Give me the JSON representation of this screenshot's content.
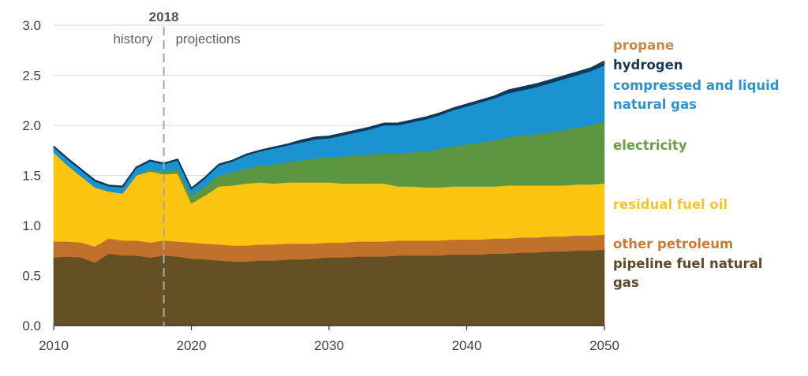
{
  "chart_data": {
    "type": "area",
    "stacked": true,
    "title": "",
    "xlabel": "",
    "ylabel": "",
    "xlim": [
      2010,
      2050
    ],
    "ylim": [
      0,
      3.0
    ],
    "x_ticks": [
      "2010",
      "2020",
      "2030",
      "2040",
      "2050"
    ],
    "y_ticks": [
      "0.0",
      "0.5",
      "1.0",
      "1.5",
      "2.0",
      "2.5",
      "3.0"
    ],
    "grid": "horizontal",
    "legend_placement": "right",
    "annotations": {
      "divider_year": 2018,
      "divider_label": "2018",
      "left_label": "history",
      "right_label": "projections"
    },
    "x": [
      2010,
      2011,
      2012,
      2013,
      2014,
      2015,
      2016,
      2017,
      2018,
      2019,
      2020,
      2021,
      2022,
      2023,
      2024,
      2025,
      2026,
      2027,
      2028,
      2029,
      2030,
      2031,
      2032,
      2033,
      2034,
      2035,
      2036,
      2037,
      2038,
      2039,
      2040,
      2041,
      2042,
      2043,
      2044,
      2045,
      2046,
      2047,
      2048,
      2049,
      2050
    ],
    "series": [
      {
        "name": "pipeline fuel natural gas",
        "color": "#654F24",
        "values": [
          0.68,
          0.69,
          0.68,
          0.63,
          0.72,
          0.7,
          0.7,
          0.68,
          0.7,
          0.69,
          0.67,
          0.66,
          0.65,
          0.64,
          0.64,
          0.65,
          0.65,
          0.66,
          0.66,
          0.67,
          0.68,
          0.68,
          0.69,
          0.69,
          0.69,
          0.7,
          0.7,
          0.7,
          0.7,
          0.71,
          0.71,
          0.71,
          0.72,
          0.72,
          0.73,
          0.73,
          0.74,
          0.74,
          0.75,
          0.75,
          0.76
        ]
      },
      {
        "name": "other petroleum",
        "color": "#C0712C",
        "values": [
          0.16,
          0.15,
          0.15,
          0.16,
          0.15,
          0.15,
          0.15,
          0.15,
          0.15,
          0.15,
          0.16,
          0.16,
          0.16,
          0.16,
          0.16,
          0.16,
          0.16,
          0.16,
          0.16,
          0.15,
          0.15,
          0.15,
          0.15,
          0.15,
          0.15,
          0.15,
          0.15,
          0.15,
          0.15,
          0.15,
          0.15,
          0.15,
          0.15,
          0.15,
          0.15,
          0.15,
          0.15,
          0.15,
          0.15,
          0.15,
          0.15
        ]
      },
      {
        "name": "residual fuel oil",
        "color": "#FBC411",
        "values": [
          0.89,
          0.76,
          0.66,
          0.59,
          0.47,
          0.47,
          0.65,
          0.71,
          0.66,
          0.68,
          0.39,
          0.48,
          0.58,
          0.6,
          0.62,
          0.62,
          0.61,
          0.61,
          0.61,
          0.61,
          0.6,
          0.59,
          0.58,
          0.58,
          0.58,
          0.54,
          0.54,
          0.53,
          0.53,
          0.53,
          0.53,
          0.53,
          0.52,
          0.53,
          0.52,
          0.52,
          0.51,
          0.51,
          0.51,
          0.51,
          0.51
        ]
      },
      {
        "name": "electricity",
        "color": "#5D9640",
        "values": [
          0.0,
          0.0,
          0.0,
          0.0,
          0.0,
          0.0,
          0.0,
          0.02,
          0.03,
          0.04,
          0.08,
          0.09,
          0.11,
          0.13,
          0.15,
          0.17,
          0.19,
          0.2,
          0.22,
          0.24,
          0.25,
          0.27,
          0.28,
          0.29,
          0.3,
          0.33,
          0.34,
          0.36,
          0.38,
          0.4,
          0.42,
          0.44,
          0.46,
          0.48,
          0.5,
          0.51,
          0.53,
          0.55,
          0.57,
          0.59,
          0.62
        ]
      },
      {
        "name": "compressed and liquid natural gas",
        "color": "#1B93D1",
        "values": [
          0.05,
          0.06,
          0.06,
          0.06,
          0.05,
          0.06,
          0.07,
          0.08,
          0.07,
          0.09,
          0.06,
          0.08,
          0.1,
          0.11,
          0.13,
          0.14,
          0.16,
          0.17,
          0.18,
          0.19,
          0.19,
          0.21,
          0.23,
          0.25,
          0.28,
          0.28,
          0.3,
          0.32,
          0.34,
          0.36,
          0.38,
          0.4,
          0.42,
          0.44,
          0.45,
          0.47,
          0.49,
          0.51,
          0.52,
          0.54,
          0.56
        ]
      },
      {
        "name": "hydrogen",
        "color": "#0E3A5B",
        "values": [
          0.01,
          0.01,
          0.01,
          0.01,
          0.01,
          0.01,
          0.01,
          0.01,
          0.01,
          0.01,
          0.01,
          0.01,
          0.01,
          0.01,
          0.01,
          0.01,
          0.01,
          0.01,
          0.02,
          0.02,
          0.02,
          0.02,
          0.02,
          0.02,
          0.02,
          0.02,
          0.02,
          0.02,
          0.02,
          0.02,
          0.02,
          0.02,
          0.02,
          0.03,
          0.03,
          0.03,
          0.03,
          0.03,
          0.03,
          0.03,
          0.03
        ]
      },
      {
        "name": "propane",
        "color": "#C98941",
        "values": [
          0.0,
          0.0,
          0.0,
          0.0,
          0.0,
          0.0,
          0.0,
          0.0,
          0.0,
          0.0,
          0.0,
          0.0,
          0.0,
          0.0,
          0.0,
          0.0,
          0.0,
          0.0,
          0.0,
          0.0,
          0.0,
          0.0,
          0.0,
          0.0,
          0.0,
          0.0,
          0.0,
          0.0,
          0.0,
          0.0,
          0.0,
          0.0,
          0.0,
          0.0,
          0.0,
          0.0,
          0.0,
          0.0,
          0.0,
          0.0,
          0.01
        ]
      }
    ],
    "legend": [
      {
        "label_lines": [
          "propane"
        ],
        "color": "#C88A4A"
      },
      {
        "label_lines": [
          "hydrogen"
        ],
        "color": "#1B3A52"
      },
      {
        "label_lines": [
          "compressed and liquid",
          "natural gas"
        ],
        "color": "#2E93C9"
      },
      {
        "label_lines": [
          "electricity"
        ],
        "color": "#6A9E47"
      },
      {
        "label_lines": [
          "residual fuel oil"
        ],
        "color": "#F2C531"
      },
      {
        "label_lines": [
          "other petroleum"
        ],
        "color": "#C97C3A"
      },
      {
        "label_lines": [
          "pipeline fuel natural",
          "gas"
        ],
        "color": "#5C4A2A"
      }
    ]
  }
}
